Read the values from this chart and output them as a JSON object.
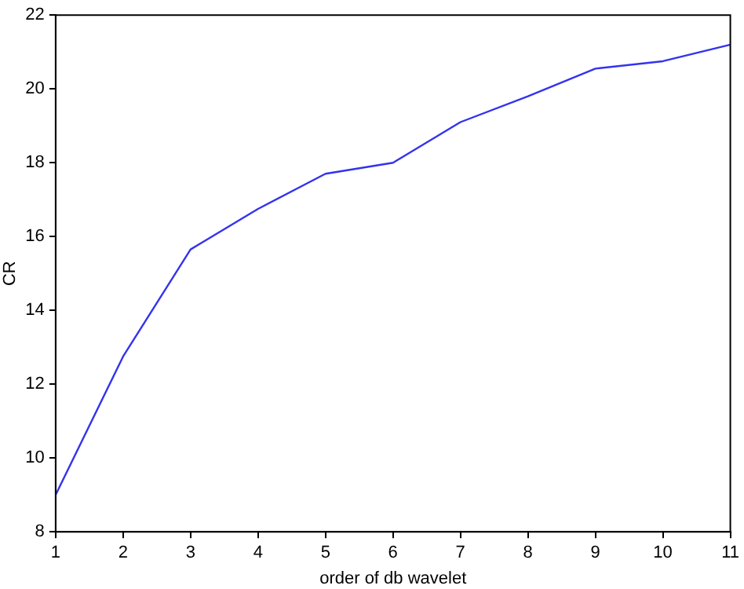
{
  "chart_data": {
    "type": "line",
    "xlabel": "order of db wavelet",
    "ylabel": "CR",
    "x": [
      1,
      2,
      3,
      4,
      5,
      6,
      7,
      8,
      9,
      10,
      11
    ],
    "series": [
      {
        "color": "#3333ee",
        "values": [
          9.0,
          12.75,
          15.65,
          16.75,
          17.7,
          18.0,
          19.1,
          19.8,
          20.55,
          20.75,
          21.2
        ]
      }
    ],
    "xlim": [
      1,
      11
    ],
    "xticks": [
      1,
      2,
      3,
      4,
      5,
      6,
      7,
      8,
      9,
      10,
      11
    ],
    "ylim": [
      8,
      22
    ],
    "yticks": [
      8,
      10,
      12,
      14,
      16,
      18,
      20,
      22
    ],
    "grid": false,
    "legend": false,
    "marker": "none",
    "line_style": "solid"
  }
}
